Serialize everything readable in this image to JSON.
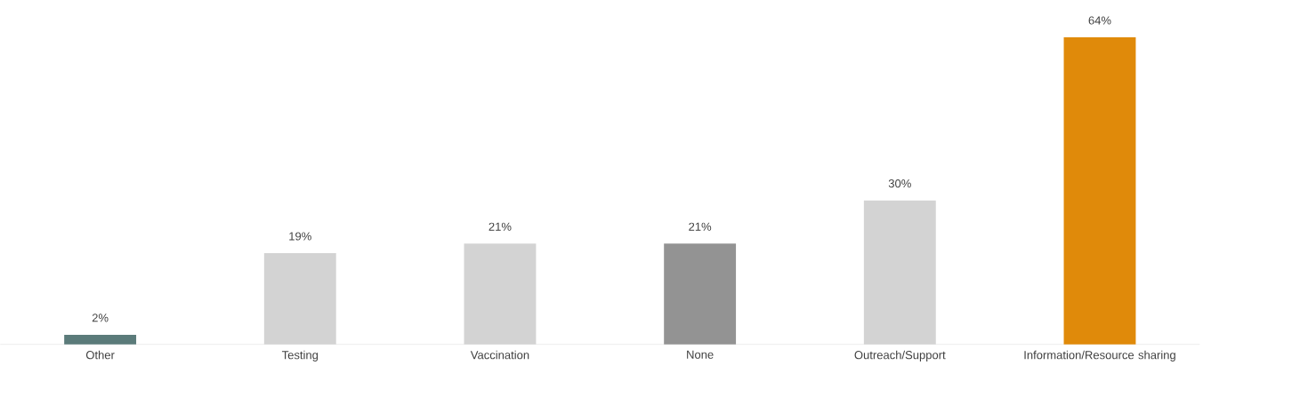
{
  "chart_data": {
    "type": "bar",
    "categories": [
      "Other",
      "Testing",
      "Vaccination",
      "None",
      "Outreach/Support",
      "Information/Resource sharing"
    ],
    "values": [
      2,
      19,
      21,
      21,
      30,
      64
    ],
    "value_labels": [
      "2%",
      "19%",
      "21%",
      "21%",
      "30%",
      "64%"
    ],
    "colors": [
      "#5b7b7a",
      "#d3d3d3",
      "#d3d3d3",
      "#939393",
      "#d3d3d3",
      "#e08a0a"
    ]
  }
}
